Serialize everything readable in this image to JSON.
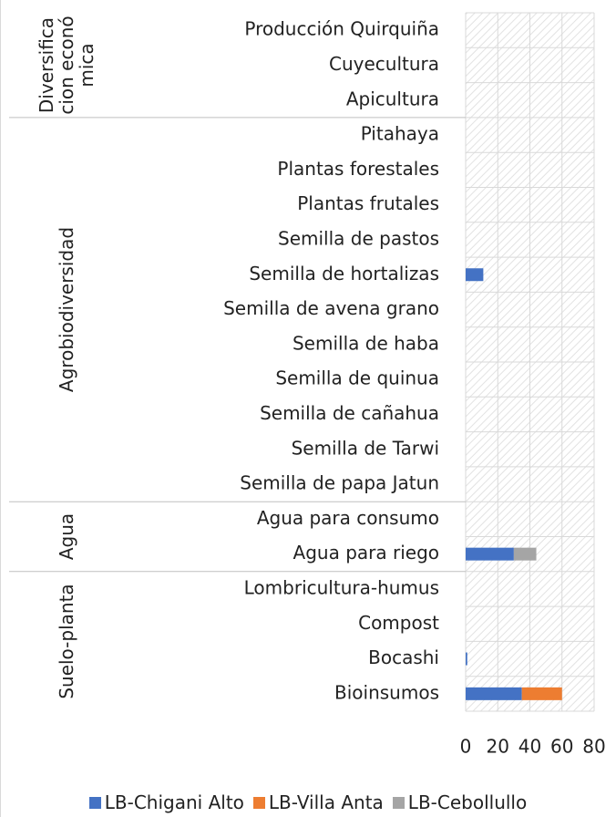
{
  "chart_data": {
    "type": "bar",
    "orientation": "horizontal",
    "stacked": true,
    "groups": [
      {
        "name": "Diversificacion económica",
        "categories": [
          "Producción Quirquiña",
          "Cuyecultura",
          "Apicultura"
        ]
      },
      {
        "name": "Agrobiodiversidad",
        "categories": [
          "Pitahaya",
          "Plantas forestales",
          "Plantas frutales",
          "Semilla de pastos",
          "Semilla de hortalizas",
          "Semilla de avena grano",
          "Semilla de haba",
          "Semilla de quinua",
          "Semilla de cañahua",
          "Semilla de Tarwi",
          "Semilla de papa Jatun"
        ]
      },
      {
        "name": "Agua",
        "categories": [
          "Agua para consumo",
          "Agua para riego"
        ]
      },
      {
        "name": "Suelo-planta",
        "categories": [
          "Lombricultura-humus",
          "Compost",
          "Bocashi",
          "Bioinsumos"
        ]
      }
    ],
    "series": [
      {
        "name": "LB-Chigani Alto",
        "color": "#4472c4",
        "values": [
          0,
          0,
          0,
          0,
          0,
          0,
          0,
          11,
          0,
          0,
          0,
          0,
          0,
          0,
          0,
          30,
          0,
          0,
          1,
          35
        ]
      },
      {
        "name": "LB-Villa Anta",
        "color": "#ed7d31",
        "values": [
          0,
          0,
          0,
          0,
          0,
          0,
          0,
          0,
          0,
          0,
          0,
          0,
          0,
          0,
          0,
          0,
          0,
          0,
          0,
          25
        ]
      },
      {
        "name": "LB-Cebollullo",
        "color": "#a5a5a5",
        "values": [
          0,
          0,
          0,
          0,
          0,
          0,
          0,
          0,
          0,
          0,
          0,
          0,
          0,
          0,
          0,
          14,
          0,
          0,
          0,
          0
        ]
      }
    ],
    "xlim": [
      0,
      80
    ],
    "xticks": [
      0,
      20,
      40,
      60,
      80
    ],
    "grid": true,
    "legend": "bottom"
  }
}
